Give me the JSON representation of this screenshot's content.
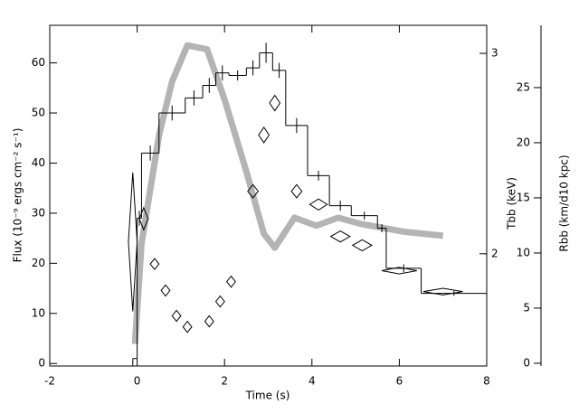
{
  "chart_data": {
    "type": "multi",
    "xlabel": "Time (s)",
    "ylabel": "Flux (10⁻⁹ ergs cm⁻² s⁻¹)",
    "y2label": "Tbb (keV)",
    "y3label": "Rbb (km/d10 kpc)",
    "xlim": [
      -2,
      8
    ],
    "xticks": [
      -2,
      0,
      2,
      4,
      6,
      8
    ],
    "ylim": [
      -0.5,
      67.5
    ],
    "yticks": [
      0,
      10,
      20,
      30,
      40,
      50,
      60
    ],
    "y2lim": [
      1.44,
      3.14
    ],
    "y2ticks": [
      2,
      3
    ],
    "y3lim": [
      -0.25,
      30.65
    ],
    "y3ticks": [
      0,
      5,
      10,
      15,
      20,
      25
    ],
    "flux": {
      "color": "#000000",
      "bins": [
        -0.1,
        0,
        0.1,
        0.5,
        1.1,
        1.5,
        1.8,
        2.1,
        2.5,
        2.8,
        3.1,
        3.4,
        3.9,
        4.4,
        4.9,
        5.5,
        5.7,
        6.5,
        8.0
      ],
      "values": [
        1,
        29,
        42,
        50,
        53,
        55.5,
        58,
        57.5,
        59,
        62,
        58.5,
        47.5,
        37.5,
        31.5,
        29.5,
        27,
        19,
        14
      ],
      "errors": [
        0,
        1.5,
        1.5,
        1.5,
        1.5,
        1.5,
        1.5,
        1,
        1.5,
        2,
        1.5,
        1.5,
        1,
        1,
        0.8,
        0.8,
        0.8,
        0.5
      ]
    },
    "temperature": {
      "axis": "y2",
      "color": "#b4b4b4",
      "x": [
        -0.05,
        0.1,
        0.5,
        0.8,
        1.15,
        1.6,
        2.0,
        2.5,
        2.9,
        3.15,
        3.6,
        4.1,
        4.6,
        5.1,
        5.6,
        6.1,
        7.0
      ],
      "values": [
        1.55,
        2.05,
        2.59,
        2.86,
        3.04,
        3.02,
        2.77,
        2.41,
        2.1,
        2.03,
        2.18,
        2.14,
        2.18,
        2.15,
        2.13,
        2.11,
        2.09
      ]
    },
    "radius": {
      "axis": "y3",
      "color": "#000000",
      "x": [
        -0.1,
        0.15,
        0.4,
        0.65,
        0.9,
        1.15,
        1.65,
        1.9,
        2.15,
        2.65,
        2.9,
        3.15,
        3.65,
        4.15,
        4.65,
        5.15,
        6.0,
        7.0
      ],
      "xerr": [
        0.1,
        0.1,
        0.1,
        0.1,
        0.1,
        0.1,
        0.1,
        0.1,
        0.1,
        0.12,
        0.12,
        0.12,
        0.12,
        0.2,
        0.22,
        0.22,
        0.4,
        0.45
      ],
      "values": [
        11.0,
        13.1,
        9.0,
        6.6,
        4.3,
        3.3,
        3.8,
        5.6,
        7.4,
        15.6,
        20.7,
        23.6,
        15.6,
        14.4,
        11.5,
        10.7,
        8.4,
        6.5
      ],
      "yerr": [
        6.3,
        1.0,
        0.5,
        0.5,
        0.5,
        0.5,
        0.5,
        0.5,
        0.5,
        0.6,
        0.7,
        0.7,
        0.6,
        0.5,
        0.5,
        0.5,
        0.3,
        0.3
      ]
    }
  }
}
